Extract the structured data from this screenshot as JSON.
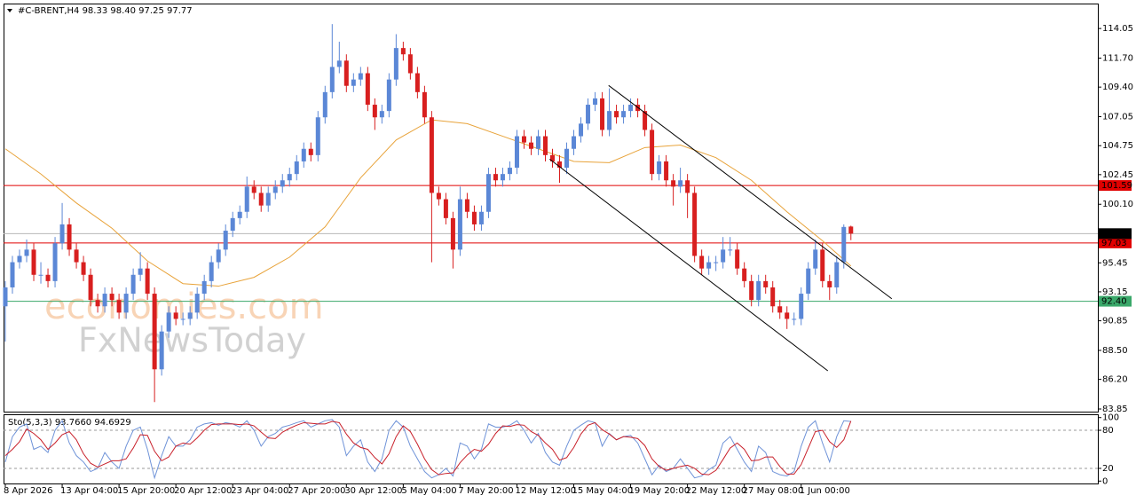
{
  "chart_data": [
    {
      "type": "candlestick",
      "header": "#C-BRENT,H4  98.33 98.40 97.25 97.77",
      "up_color": "#5b87d6",
      "down_color": "#d81f1f",
      "xlim": [
        -0.25,
        153.75
      ],
      "ylim": [
        83.64,
        116.03
      ],
      "yticks": [
        114.05,
        {
          "value": 111.7,
          "label": "111.70"
        },
        {
          "value": 109.4,
          "label": "109.40"
        },
        107.05,
        104.75,
        102.45,
        {
          "value": 100.1,
          "label": "100.10"
        },
        95.45,
        93.15,
        90.85,
        {
          "value": 88.5,
          "label": "88.50"
        },
        {
          "value": 86.2,
          "label": "86.20"
        },
        83.85
      ],
      "xticks": [
        {
          "value": 0,
          "label": "8 Apr 2026"
        },
        {
          "value": 8,
          "label": "13 Apr 04:00"
        },
        {
          "value": 16,
          "label": "15 Apr 20:00"
        },
        {
          "value": 24,
          "label": "20 Apr 12:00"
        },
        {
          "value": 32,
          "label": "23 Apr 04:00"
        },
        {
          "value": 40,
          "label": "27 Apr 20:00"
        },
        {
          "value": 48,
          "label": "30 Apr 12:00"
        },
        {
          "value": 56,
          "label": "5 May 04:00"
        },
        {
          "value": 64,
          "label": "7 May 20:00"
        },
        {
          "value": 72,
          "label": "12 May 12:00"
        },
        {
          "value": 80,
          "label": "15 May 04:00"
        },
        {
          "value": 88,
          "label": "19 May 20:00"
        },
        {
          "value": 96,
          "label": "22 May 12:00"
        },
        {
          "value": 104,
          "label": "27 May 08:00"
        },
        {
          "value": 112,
          "label": "1 Jun 00:00"
        }
      ],
      "candles": [
        [
          92,
          94,
          89.2,
          93.5
        ],
        [
          93.5,
          96,
          93,
          95.5
        ],
        [
          95.5,
          96.5,
          95,
          96
        ],
        [
          96,
          97.3,
          95.5,
          96.5
        ],
        [
          96.5,
          97,
          94,
          94.5
        ],
        [
          94.5,
          95.5,
          93.8,
          94.5
        ],
        [
          94.5,
          95,
          93.5,
          94
        ],
        [
          94,
          97.5,
          93.5,
          97
        ],
        [
          97,
          100.2,
          96.5,
          98.5
        ],
        [
          98.5,
          99,
          96,
          96.5
        ],
        [
          96.5,
          97,
          95,
          95.5
        ],
        [
          95.5,
          96,
          94,
          94.5
        ],
        [
          94.5,
          95,
          92,
          92.5
        ],
        [
          92.5,
          93,
          91.5,
          92
        ],
        [
          92,
          93.5,
          91.5,
          93
        ],
        [
          93,
          93.5,
          92,
          92.5
        ],
        [
          92.5,
          93,
          91,
          91.5
        ],
        [
          91.5,
          93.5,
          91,
          93
        ],
        [
          93,
          95,
          92.5,
          94.5
        ],
        [
          94.5,
          96.3,
          94,
          95
        ],
        [
          95,
          95.5,
          92.5,
          93
        ],
        [
          93,
          93.5,
          84.4,
          87
        ],
        [
          87,
          90.5,
          86.5,
          90
        ],
        [
          90,
          92,
          89.5,
          91.5
        ],
        [
          91.5,
          92,
          90.5,
          91
        ],
        [
          91,
          91.5,
          90.5,
          91
        ],
        [
          91,
          92,
          90.5,
          91.5
        ],
        [
          91.5,
          93.5,
          91,
          93
        ],
        [
          93,
          94.5,
          92.5,
          94
        ],
        [
          94,
          96,
          93.5,
          95.5
        ],
        [
          95.5,
          97,
          95,
          96.5
        ],
        [
          96.5,
          98.5,
          96,
          98
        ],
        [
          98,
          99.5,
          97.5,
          99
        ],
        [
          99,
          100,
          98.5,
          99.5
        ],
        [
          99.5,
          102.3,
          99,
          101.5
        ],
        [
          101.5,
          102,
          100.5,
          101
        ],
        [
          101,
          101.5,
          99.5,
          100
        ],
        [
          100,
          101.5,
          99.5,
          101
        ],
        [
          101,
          102,
          100.5,
          101.5
        ],
        [
          101.5,
          102.5,
          101,
          102
        ],
        [
          102,
          103,
          101.5,
          102.5
        ],
        [
          102.5,
          104,
          102,
          103.5
        ],
        [
          103.5,
          105,
          103,
          104.5
        ],
        [
          104.5,
          105,
          103.5,
          104
        ],
        [
          104,
          107.5,
          103.5,
          107
        ],
        [
          107,
          109.5,
          106.5,
          109
        ],
        [
          109,
          114.4,
          108.5,
          111
        ],
        [
          111,
          113,
          110.5,
          111.5
        ],
        [
          111.5,
          112,
          109,
          109.5
        ],
        [
          109.5,
          110.5,
          109,
          110
        ],
        [
          110,
          111,
          109.5,
          110.5
        ],
        [
          110.5,
          111,
          107.5,
          108
        ],
        [
          108,
          108.5,
          106,
          107
        ],
        [
          107,
          108,
          106.5,
          107.5
        ],
        [
          107.5,
          110.5,
          107,
          110
        ],
        [
          110,
          113.6,
          109.5,
          112.5
        ],
        [
          112.5,
          113,
          111.5,
          112
        ],
        [
          112,
          112.5,
          110,
          110.5
        ],
        [
          110.5,
          111,
          108.5,
          109
        ],
        [
          109,
          109.5,
          106.5,
          107
        ],
        [
          107,
          107.5,
          95.5,
          101
        ],
        [
          101,
          101.5,
          100,
          100.5
        ],
        [
          100.5,
          101,
          98.5,
          99
        ],
        [
          99,
          99.5,
          95,
          96.5
        ],
        [
          96.5,
          101.5,
          96,
          100.5
        ],
        [
          100.5,
          101,
          99,
          99.5
        ],
        [
          99.5,
          100,
          98,
          98.5
        ],
        [
          98.5,
          100,
          98,
          99.5
        ],
        [
          99.5,
          103,
          99,
          102.5
        ],
        [
          102.5,
          103,
          101.5,
          102
        ],
        [
          102,
          103,
          101.5,
          102.5
        ],
        [
          102.5,
          103.5,
          102,
          103
        ],
        [
          103,
          106,
          102.5,
          105.5
        ],
        [
          105.5,
          106,
          104.5,
          105
        ],
        [
          105,
          105.5,
          104,
          104.5
        ],
        [
          104.5,
          106,
          104,
          105.5
        ],
        [
          105.5,
          106,
          103.5,
          104
        ],
        [
          104,
          104.5,
          103,
          103.5
        ],
        [
          103.5,
          104,
          101.8,
          103
        ],
        [
          103,
          105,
          102.5,
          104.5
        ],
        [
          104.5,
          106,
          104,
          105.5
        ],
        [
          105.5,
          107,
          105,
          106.5
        ],
        [
          106.5,
          108.5,
          106,
          108
        ],
        [
          108,
          109,
          107.5,
          108.5
        ],
        [
          108.5,
          109,
          105.5,
          106
        ],
        [
          106,
          109.3,
          105.5,
          107.5
        ],
        [
          107.5,
          108,
          106.5,
          107
        ],
        [
          107,
          108,
          106.5,
          107.5
        ],
        [
          107.5,
          108.5,
          107,
          108
        ],
        [
          108,
          108.5,
          107,
          107.5
        ],
        [
          107.5,
          108,
          105.5,
          106
        ],
        [
          106,
          106.5,
          102,
          102.5
        ],
        [
          102.5,
          104,
          102,
          103.5
        ],
        [
          103.5,
          104,
          101.5,
          102
        ],
        [
          102,
          102.5,
          100,
          101.5
        ],
        [
          101.5,
          103,
          101,
          102
        ],
        [
          102,
          102.5,
          99,
          101
        ],
        [
          101,
          101.5,
          95.5,
          96
        ],
        [
          96,
          96.5,
          94.5,
          95
        ],
        [
          95,
          96,
          94.5,
          95.5
        ],
        [
          95.5,
          96,
          94.8,
          95.5
        ],
        [
          95.5,
          97.5,
          95,
          96.5
        ],
        [
          96.5,
          97.5,
          96,
          96.5
        ],
        [
          96.5,
          97,
          94.5,
          95
        ],
        [
          95,
          95.5,
          93.5,
          94
        ],
        [
          94,
          94.5,
          92,
          92.5
        ],
        [
          92.5,
          94.5,
          92,
          94
        ],
        [
          94,
          94.5,
          93,
          93.5
        ],
        [
          93.5,
          94,
          91.5,
          92
        ],
        [
          92,
          92.5,
          91,
          91.5
        ],
        [
          91.5,
          92,
          90.2,
          91
        ],
        [
          91,
          91.5,
          90.5,
          91
        ],
        [
          91,
          93.5,
          90.5,
          93
        ],
        [
          93,
          95.5,
          92.5,
          95
        ],
        [
          95,
          97.3,
          94.5,
          96.5
        ],
        [
          96.5,
          97,
          93.5,
          94
        ],
        [
          94,
          94.5,
          92.5,
          93.5
        ],
        [
          93.5,
          96,
          93,
          95.5
        ],
        [
          95.5,
          98.5,
          95,
          98.3
        ],
        [
          98.33,
          98.4,
          97.25,
          97.77
        ]
      ],
      "ma": {
        "color": "#e8a33a",
        "x": [
          0,
          5,
          10,
          15,
          20,
          25,
          30,
          35,
          40,
          45,
          50,
          55,
          60,
          65,
          70,
          75,
          80,
          85,
          90,
          95,
          100,
          105,
          110,
          115,
          119
        ],
        "values": [
          104.5,
          102.5,
          100.2,
          98.2,
          95.6,
          93.8,
          93.6,
          94.3,
          95.9,
          98.3,
          102.2,
          105.2,
          106.8,
          106.5,
          105.5,
          104.5,
          103.5,
          103.4,
          104.6,
          104.8,
          103.8,
          102,
          99.5,
          97.2,
          95.2
        ]
      },
      "current_price_color": "#b8b8b8",
      "levels": [
        {
          "value": 101.59,
          "label": "101.59",
          "color": "#e00000"
        },
        {
          "value": 97.03,
          "label": "97.03",
          "color": "#e00000"
        },
        {
          "value": 92.4,
          "label": "92.40",
          "color": "#3aa86a"
        }
      ],
      "trendlines": [
        {
          "x": [
            84.9,
            124.75
          ],
          "y": [
            109.53,
            92.6
          ],
          "color": "#000000"
        },
        {
          "x": [
            76.6,
            115.75
          ],
          "y": [
            103.68,
            86.88
          ],
          "color": "#000000"
        }
      ]
    },
    {
      "type": "line",
      "header": "Sto(5,3,3) 93.7660 94.6929",
      "xlim": [
        -0.25,
        153.75
      ],
      "ylim": [
        -3.8,
        105.2
      ],
      "yticks": [
        100,
        80,
        20,
        0
      ],
      "dotted_levels": [
        80,
        20
      ],
      "series": [
        {
          "color": "#6f93d8",
          "values": [
            30,
            70,
            85,
            90,
            50,
            55,
            45,
            80,
            95,
            60,
            40,
            30,
            15,
            20,
            45,
            30,
            20,
            55,
            80,
            85,
            50,
            5,
            40,
            70,
            55,
            55,
            65,
            85,
            90,
            92,
            88,
            92,
            90,
            85,
            95,
            80,
            55,
            70,
            75,
            85,
            88,
            92,
            95,
            85,
            90,
            95,
            97,
            85,
            40,
            55,
            65,
            30,
            15,
            35,
            80,
            95,
            85,
            55,
            35,
            15,
            5,
            10,
            20,
            8,
            60,
            55,
            35,
            50,
            90,
            85,
            85,
            88,
            95,
            80,
            60,
            75,
            45,
            30,
            25,
            55,
            80,
            88,
            95,
            92,
            55,
            75,
            65,
            70,
            72,
            60,
            35,
            10,
            25,
            15,
            20,
            35,
            20,
            5,
            8,
            18,
            25,
            60,
            70,
            50,
            30,
            15,
            55,
            45,
            15,
            10,
            8,
            15,
            55,
            85,
            95,
            60,
            30,
            70,
            95,
            93.766
          ]
        },
        {
          "color": "#c8202a",
          "values": [
            40,
            50,
            62,
            82,
            75,
            65,
            50,
            60,
            73,
            78,
            65,
            43,
            28,
            22,
            27,
            32,
            32,
            35,
            52,
            73,
            72,
            47,
            32,
            38,
            55,
            60,
            58,
            68,
            80,
            89,
            90,
            90,
            90,
            89,
            90,
            87,
            77,
            68,
            67,
            77,
            83,
            88,
            92,
            91,
            90,
            90,
            94,
            92,
            74,
            60,
            53,
            50,
            37,
            27,
            43,
            70,
            87,
            78,
            58,
            35,
            18,
            10,
            12,
            13,
            29,
            41,
            50,
            47,
            58,
            75,
            87,
            86,
            89,
            88,
            78,
            72,
            60,
            50,
            33,
            37,
            53,
            74,
            88,
            92,
            81,
            74,
            65,
            70,
            69,
            67,
            56,
            35,
            23,
            17,
            20,
            23,
            25,
            20,
            11,
            10,
            17,
            34,
            52,
            60,
            50,
            32,
            33,
            38,
            38,
            23,
            11,
            11,
            26,
            52,
            78,
            80,
            62,
            53,
            65,
            94.6929
          ]
        }
      ]
    }
  ],
  "watermarks": [
    "economies.com",
    "FxNewsToday"
  ]
}
